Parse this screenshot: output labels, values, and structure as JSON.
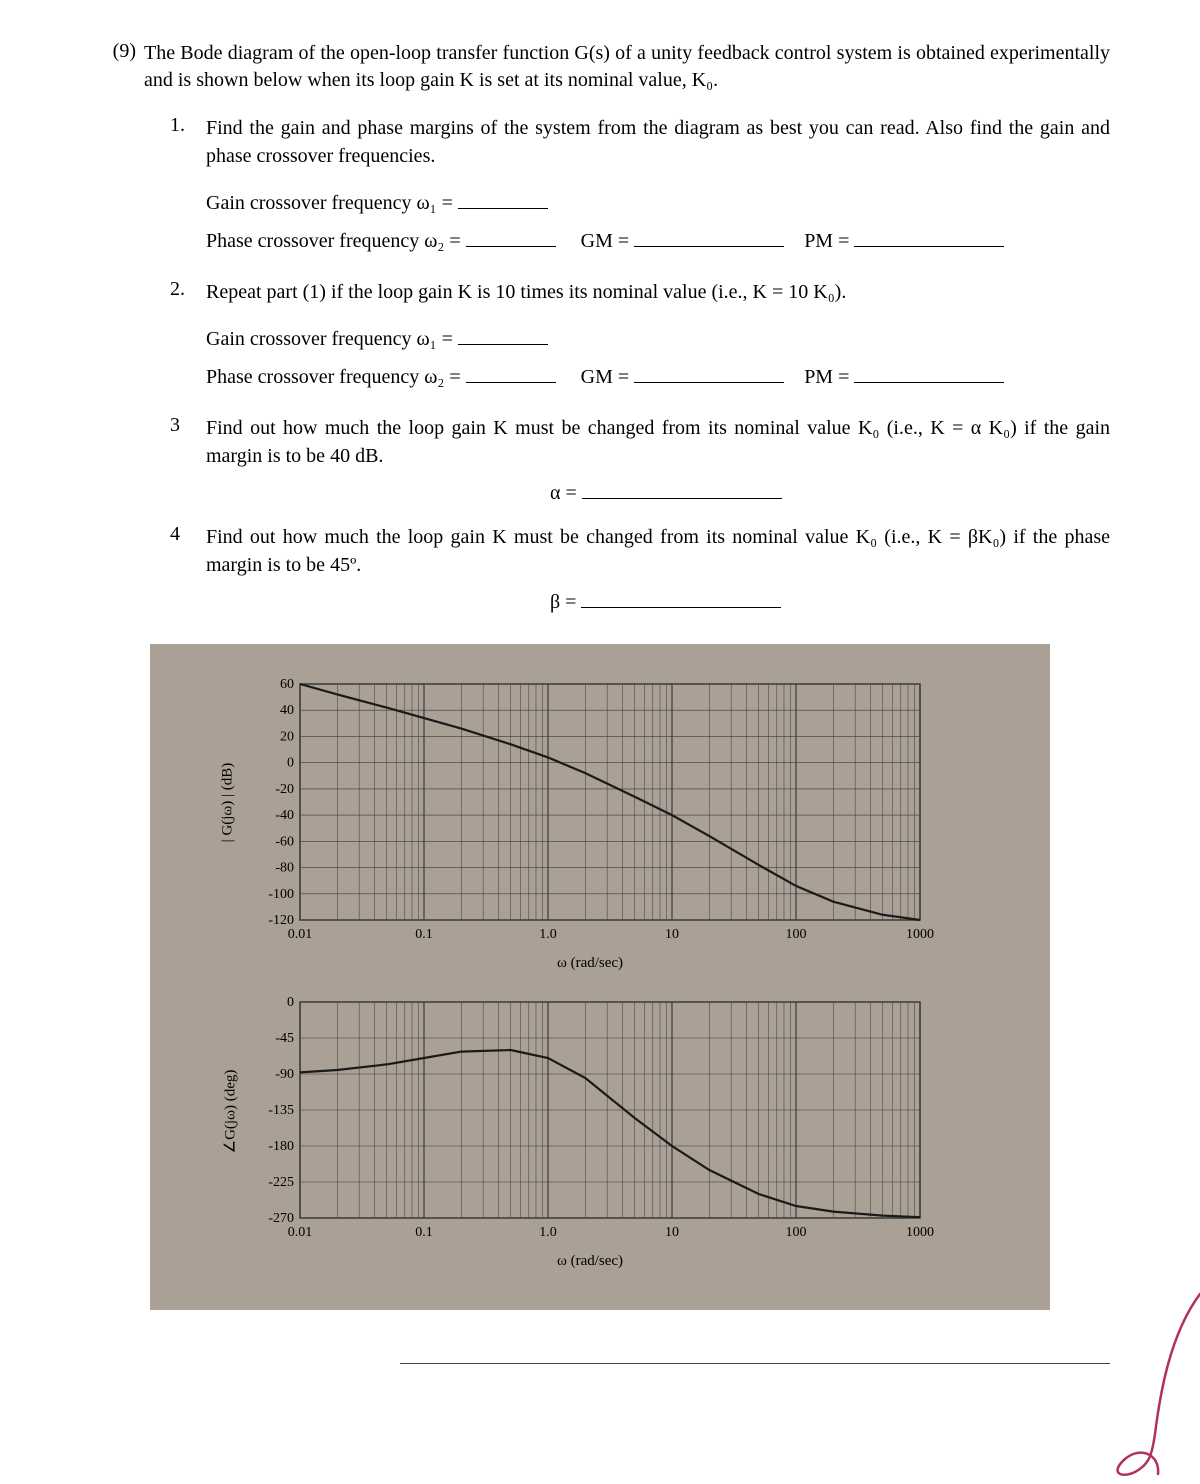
{
  "problem": {
    "number": "(9)",
    "intro": "The Bode diagram of the open-loop transfer function G(s) of a unity feedback control system is obtained experimentally and is shown below when its loop gain K is set at its nominal value, K₀."
  },
  "parts": [
    {
      "num": "1.",
      "text": "Find the gain and phase margins of the system from the diagram as best you can read. Also find the gain and phase crossover frequencies.",
      "fills": [
        {
          "label": "Gain crossover frequency ω₁ =",
          "trail": ""
        },
        {
          "label": "Phase crossover frequency ω₂ =",
          "gm": "GM =",
          "pm": "PM ="
        }
      ]
    },
    {
      "num": "2.",
      "text": "Repeat part (1) if the loop gain K is 10 times its nominal value (i.e., K = 10 K₀).",
      "fills": [
        {
          "label": "Gain crossover frequency ω₁ =",
          "trail": ""
        },
        {
          "label": "Phase crossover frequency ω₂ =",
          "gm": "GM =",
          "pm": "PM ="
        }
      ]
    },
    {
      "num": "3",
      "text": "Find out how much the loop gain K must be changed from its nominal value K₀ (i.e., K = α K₀) if the gain margin is to be 40 dB.",
      "answer": "α ="
    },
    {
      "num": "4",
      "text": "Find out how much the loop gain K must be changed from its nominal value K₀ (i.e., K = βK₀) if the phase margin is to be 45º.",
      "answer": "β ="
    }
  ],
  "bode": {
    "background": "#aaa095",
    "plot_bg": "#aaa095",
    "line_color": "#1a1a1a",
    "grid_color": "#3a3a3a",
    "tick_fontsize": 14,
    "label_fontsize": 15,
    "mag": {
      "ylabel": "| G(jω) | (dB)",
      "xlabel": "ω (rad/sec)",
      "ylim": [
        -120,
        60
      ],
      "yticks": [
        60,
        40,
        20,
        0,
        -20,
        -40,
        -60,
        -80,
        -100,
        -120
      ],
      "xlog": true,
      "xlim": [
        0.01,
        1000
      ],
      "xticks": [
        0.01,
        0.1,
        1.0,
        10,
        100,
        1000
      ],
      "xticklabels": [
        "0.01",
        "0.1",
        "1.0",
        "10",
        "100",
        "1000"
      ],
      "data_w": [
        0.01,
        0.02,
        0.05,
        0.1,
        0.2,
        0.5,
        1,
        2,
        5,
        10,
        20,
        50,
        100,
        200,
        500,
        1000
      ],
      "data_db": [
        60,
        52,
        42,
        34,
        26,
        14,
        4,
        -8,
        -26,
        -40,
        -56,
        -78,
        -94,
        -106,
        -116,
        -120
      ]
    },
    "phase": {
      "ylabel": "∠G(jω) (deg)",
      "xlabel": "ω (rad/sec)",
      "ylim": [
        -270,
        0
      ],
      "yticks": [
        0,
        -45,
        -90,
        -135,
        -180,
        -225,
        -270
      ],
      "xlog": true,
      "xlim": [
        0.01,
        1000
      ],
      "xticks": [
        0.01,
        0.1,
        1.0,
        10,
        100,
        1000
      ],
      "xticklabels": [
        "0.01",
        "0.1",
        "1.0",
        "10",
        "100",
        "1000"
      ],
      "data_w": [
        0.01,
        0.02,
        0.05,
        0.1,
        0.2,
        0.5,
        1,
        2,
        5,
        10,
        20,
        50,
        100,
        200,
        500,
        1000
      ],
      "data_deg": [
        -88,
        -85,
        -78,
        -70,
        -62,
        -60,
        -70,
        -95,
        -145,
        -180,
        -210,
        -240,
        -255,
        -262,
        -267,
        -269
      ]
    },
    "hand_annotation_color": "#b03060"
  }
}
